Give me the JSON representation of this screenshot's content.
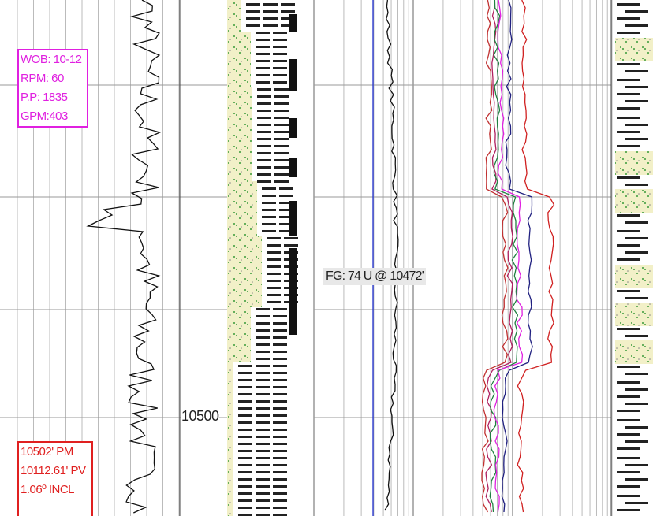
{
  "drilling_params": {
    "lines": [
      "WOB: 10-12",
      "RPM: 60",
      "P.P: 1835",
      "GPM:403"
    ]
  },
  "annotation": "FG: 74 U @ 10472'",
  "depth_label": "10500",
  "survey": {
    "lines": [
      "10502' PM",
      "10112.61' PV",
      "1.06º INCL"
    ]
  }
}
